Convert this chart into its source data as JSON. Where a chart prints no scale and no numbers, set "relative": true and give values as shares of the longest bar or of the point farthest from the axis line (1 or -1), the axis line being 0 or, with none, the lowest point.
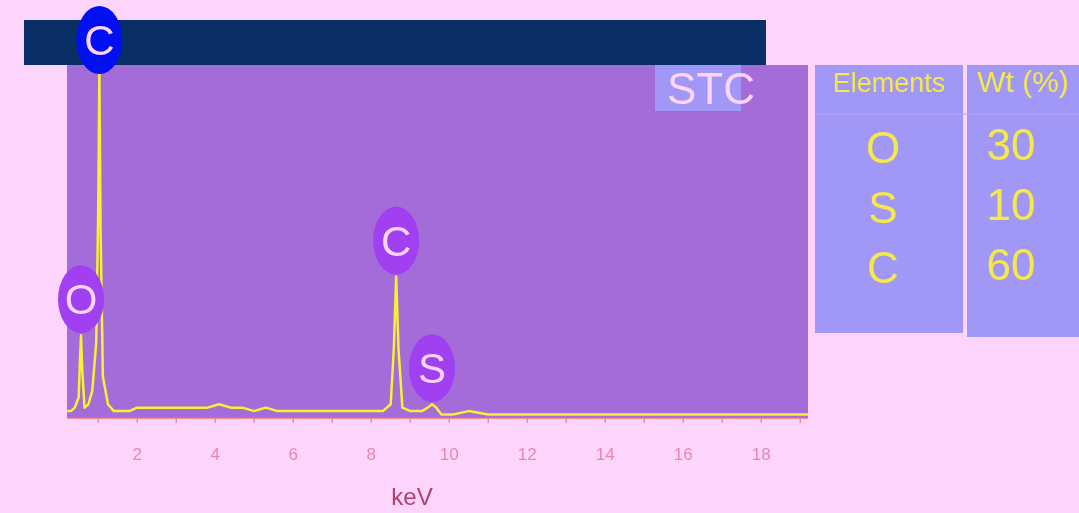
{
  "chart_data": [
    {
      "type": "line",
      "relative": true,
      "xlabel": "keV",
      "xlim": [
        0.2,
        19.2
      ],
      "xticks": [
        {
          "value": 1,
          "label": null
        },
        2,
        {
          "value": 3,
          "label": null
        },
        4,
        {
          "value": 5,
          "label": null
        },
        6,
        {
          "value": 7,
          "label": null
        },
        8,
        {
          "value": 9,
          "label": null
        },
        10,
        {
          "value": 11,
          "label": null
        },
        12,
        {
          "value": 13,
          "label": null
        },
        14,
        {
          "value": 15,
          "label": null
        },
        16,
        {
          "value": 17,
          "label": null
        },
        18,
        {
          "value": 19,
          "label": null
        }
      ],
      "x": [
        0.2,
        0.3,
        0.4,
        0.5,
        0.53,
        0.56,
        0.59,
        0.65,
        0.75,
        0.85,
        0.95,
        1.0,
        1.03,
        1.06,
        1.12,
        1.25,
        1.4,
        1.6,
        1.8,
        2.0,
        2.3,
        2.6,
        2.9,
        3.2,
        3.5,
        3.8,
        4.1,
        4.4,
        4.7,
        5.0,
        5.3,
        5.6,
        5.9,
        6.2,
        6.5,
        6.8,
        7.1,
        7.4,
        7.7,
        8.0,
        8.3,
        8.5,
        8.58,
        8.64,
        8.7,
        8.8,
        9.0,
        9.3,
        9.45,
        9.56,
        9.67,
        9.8,
        10.1,
        10.5,
        11,
        11.5,
        12,
        12.5,
        13,
        13.5,
        14,
        14.5,
        15,
        15.5,
        16,
        16.5,
        17,
        17.5,
        18,
        18.5,
        19,
        19.2
      ],
      "series": [
        {
          "color": "#f8f030",
          "values": [
            0.02,
            0.02,
            0.03,
            0.06,
            0.16,
            0.24,
            0.14,
            0.03,
            0.04,
            0.08,
            0.22,
            0.6,
            1.0,
            0.55,
            0.12,
            0.04,
            0.02,
            0.02,
            0.02,
            0.03,
            0.03,
            0.03,
            0.03,
            0.03,
            0.03,
            0.03,
            0.04,
            0.03,
            0.03,
            0.02,
            0.03,
            0.02,
            0.02,
            0.02,
            0.02,
            0.02,
            0.02,
            0.02,
            0.02,
            0.02,
            0.02,
            0.04,
            0.2,
            0.41,
            0.2,
            0.03,
            0.02,
            0.02,
            0.03,
            0.04,
            0.03,
            0.01,
            0.01,
            0.02,
            0.01,
            0.01,
            0.01,
            0.01,
            0.01,
            0.01,
            0.01,
            0.01,
            0.01,
            0.01,
            0.01,
            0.01,
            0.01,
            0.01,
            0.01,
            0.01,
            0.01,
            0.01
          ]
        }
      ],
      "annotations": [
        {
          "text": "O",
          "x": 0.56,
          "y": 0.24
        },
        {
          "text": "C",
          "x": 1.03,
          "y": 1.0
        },
        {
          "text": "C",
          "x": 8.64,
          "y": 0.41
        },
        {
          "text": "S",
          "x": 9.56,
          "y": 0.04
        },
        "STC"
      ]
    },
    {
      "type": "other",
      "xlabel": "Elements",
      "ylabel": "Wt (%)",
      "categories": [
        "O",
        "S",
        "C"
      ],
      "values": [
        30,
        10,
        60
      ],
      "data_labels": true
    }
  ]
}
